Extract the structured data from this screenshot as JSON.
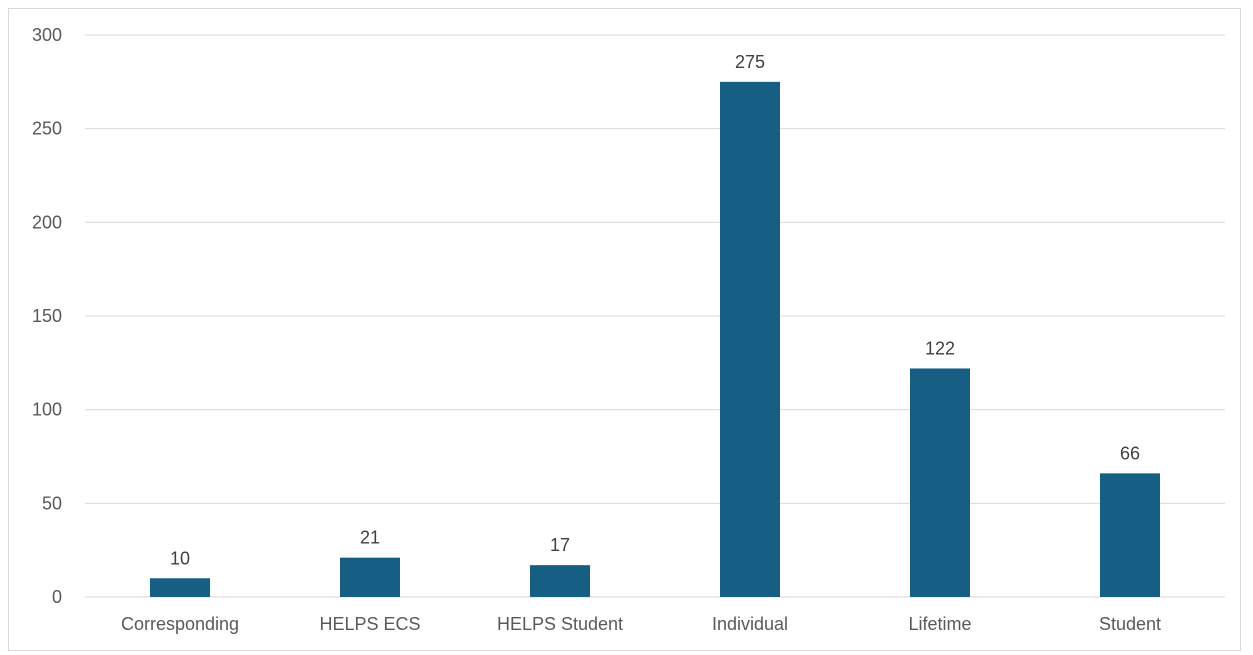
{
  "chart_data": {
    "type": "bar",
    "title": "",
    "xlabel": "",
    "ylabel": "",
    "categories": [
      "Corresponding",
      "HELPS ECS",
      "HELPS Student",
      "Individual",
      "Lifetime",
      "Student"
    ],
    "values": [
      10,
      21,
      17,
      275,
      122,
      66
    ],
    "data_labels": [
      "10",
      "21",
      "17",
      "275",
      "122",
      "66"
    ],
    "ylim": [
      0,
      300
    ],
    "y_ticks": [
      0,
      50,
      100,
      150,
      200,
      250,
      300
    ],
    "y_tick_labels": [
      "0",
      "50",
      "100",
      "150",
      "200",
      "250",
      "300"
    ],
    "grid": true,
    "legend": false,
    "bar_color": "#165E83",
    "grid_color": "#d9d9d9"
  }
}
